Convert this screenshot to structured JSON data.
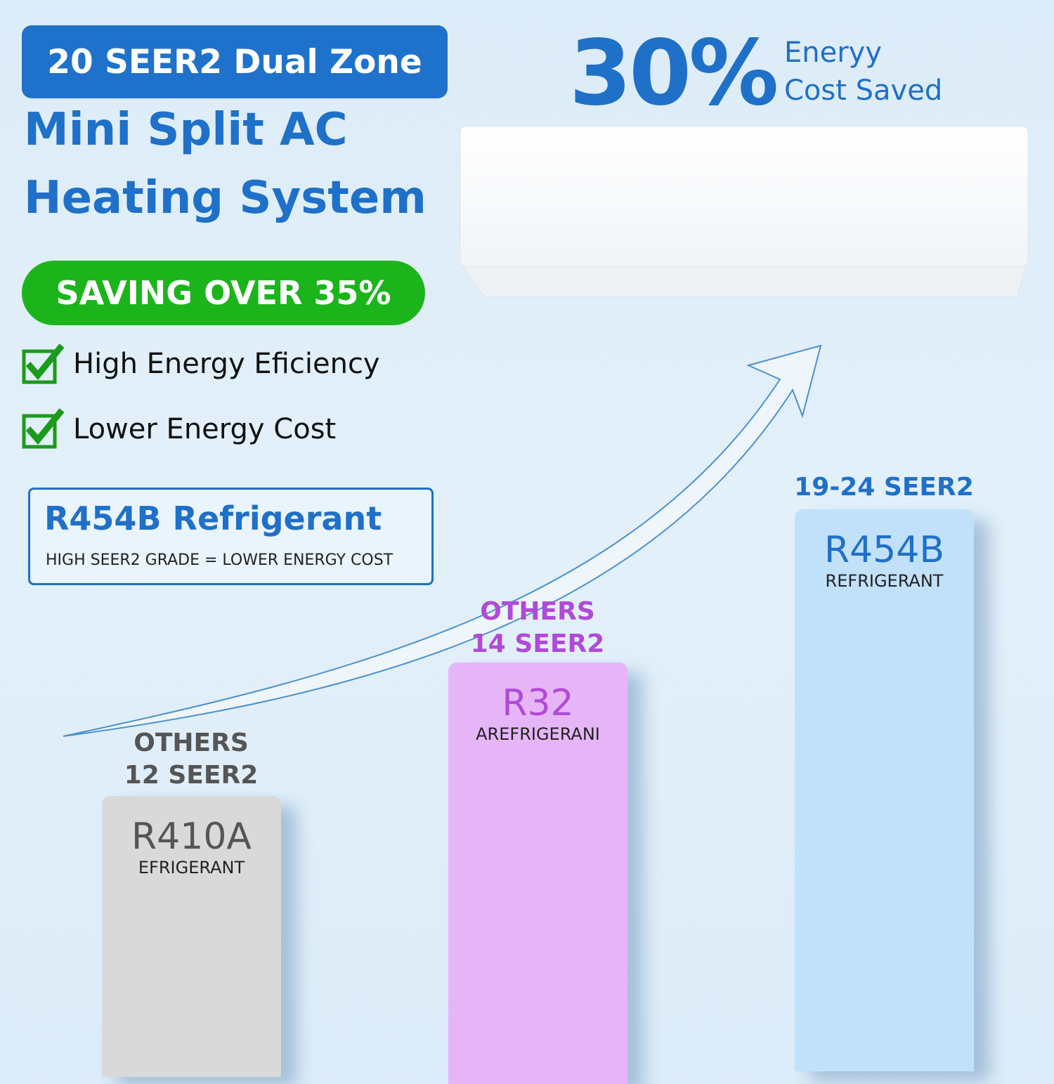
{
  "header": {
    "badge": "20 SEER2 Dual Zone",
    "title_line1": "Mini Split AC",
    "title_line2": "Heating System"
  },
  "savings": {
    "percent": "30%",
    "line1": "Eneryy",
    "line2": "Cost Saved"
  },
  "saving_badge": "SAVING OVER 35%",
  "features": [
    "High Energy Eficiency",
    "Lower Energy Cost"
  ],
  "refrigerant_box": {
    "title": "R454B Refrigerant",
    "subtitle": "HIGH SEER2 GRADE = LOWER ENERGY COST"
  },
  "columns": [
    {
      "labels": [
        "OTHERS",
        "12 SEER2"
      ],
      "name": "R410A",
      "sub": "EFRIGERANT"
    },
    {
      "labels": [
        "OTHERS",
        "14 SEER2"
      ],
      "name": "R32",
      "sub": "AREFRIGERANI"
    },
    {
      "labels": [
        "19-24 SEER2"
      ],
      "name": "R454B",
      "sub": "REFRIGERANT"
    }
  ]
}
